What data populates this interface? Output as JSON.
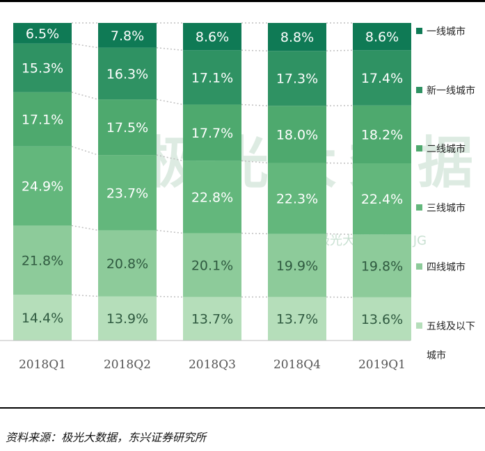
{
  "source_note": "资料来源：极光大数据，东兴证券研究所",
  "watermark": {
    "text": "极光大数据",
    "code": "极光大数据代码: JG"
  },
  "colors": {
    "一线城市": "#0f7a55",
    "新一线城市": "#2f9263",
    "二线城市": "#4ea96e",
    "三线城市": "#63b77c",
    "四线城市": "#8dcb9a",
    "五线及以下城市": "#b5deba",
    "label_dark": "#ffffff",
    "label_light": "#2f5a40"
  },
  "chart_data": {
    "type": "bar",
    "stacked": true,
    "title": "",
    "xlabel": "",
    "ylabel": "",
    "ylim": [
      0,
      100
    ],
    "grid": false,
    "legend_position": "right",
    "categories": [
      "2018Q1",
      "2018Q2",
      "2018Q3",
      "2018Q4",
      "2019Q1"
    ],
    "series": [
      {
        "name": "五线及以下城市",
        "legend_lines": [
          "五线及以下",
          "城市"
        ],
        "values": [
          14.4,
          13.9,
          13.7,
          13.7,
          13.6
        ],
        "labels": [
          "14.4%",
          "13.9%",
          "13.7%",
          "13.7%",
          "13.6%"
        ]
      },
      {
        "name": "四线城市",
        "legend_lines": [
          "四线城市"
        ],
        "values": [
          21.8,
          20.8,
          20.1,
          19.9,
          19.8
        ],
        "labels": [
          "21.8%",
          "20.8%",
          "20.1%",
          "19.9%",
          "19.8%"
        ]
      },
      {
        "name": "三线城市",
        "legend_lines": [
          "三线城市"
        ],
        "values": [
          24.9,
          23.7,
          22.8,
          22.3,
          22.4
        ],
        "labels": [
          "24.9%",
          "23.7%",
          "22.8%",
          "22.3%",
          "22.4%"
        ]
      },
      {
        "name": "二线城市",
        "legend_lines": [
          "二线城市"
        ],
        "values": [
          17.1,
          17.5,
          17.7,
          18.0,
          18.2
        ],
        "labels": [
          "17.1%",
          "17.5%",
          "17.7%",
          "18.0%",
          "18.2%"
        ]
      },
      {
        "name": "新一线城市",
        "legend_lines": [
          "新一线城市"
        ],
        "values": [
          15.3,
          16.3,
          17.1,
          17.3,
          17.4
        ],
        "labels": [
          "15.3%",
          "16.3%",
          "17.1%",
          "17.3%",
          "17.4%"
        ]
      },
      {
        "name": "一线城市",
        "legend_lines": [
          "一线城市"
        ],
        "values": [
          6.5,
          7.8,
          8.6,
          8.8,
          8.6
        ],
        "labels": [
          "6.5%",
          "7.8%",
          "8.6%",
          "8.8%",
          "8.6%"
        ]
      }
    ]
  }
}
